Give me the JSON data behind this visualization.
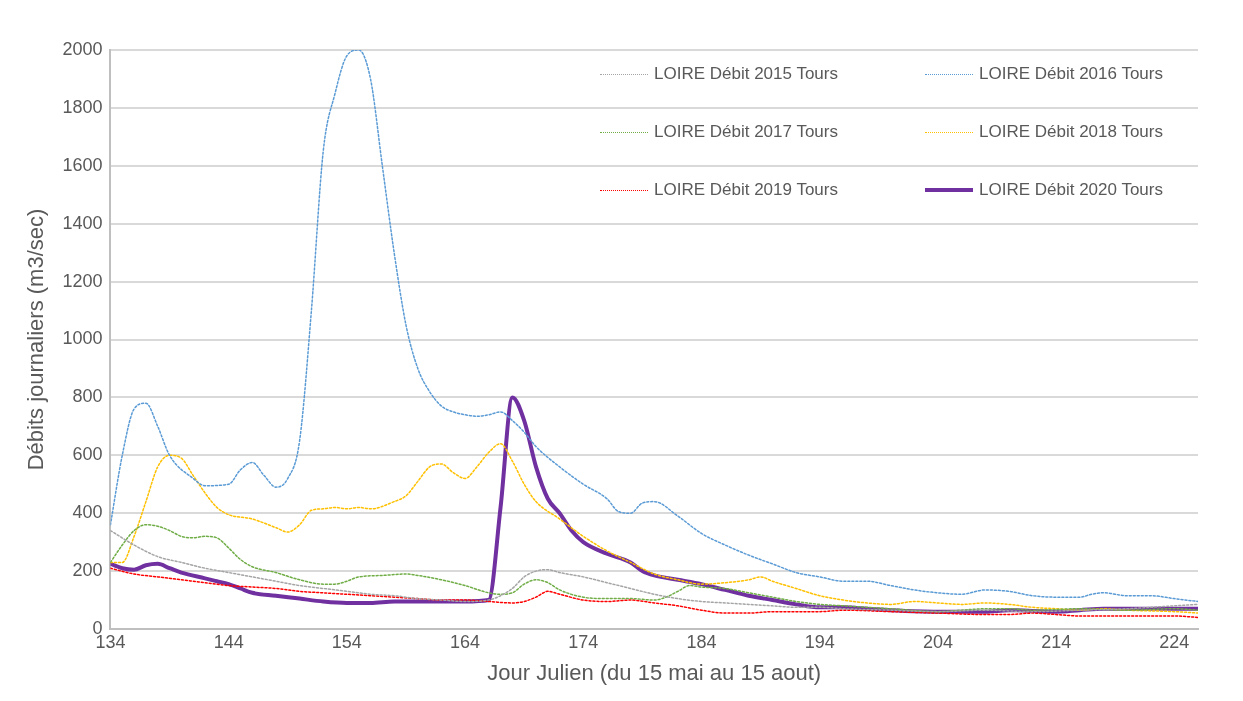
{
  "chart_data": {
    "type": "line",
    "xlabel": "Jour Julien (du 15 mai au 15 aout)",
    "ylabel": "Débits journaliers (m3/sec)",
    "xlim": [
      134,
      226
    ],
    "xticks": [
      134,
      144,
      154,
      164,
      174,
      184,
      194,
      204,
      214,
      224
    ],
    "ylim": [
      0,
      2000
    ],
    "yticks": [
      0,
      200,
      400,
      600,
      800,
      1000,
      1200,
      1400,
      1600,
      1800,
      2000
    ],
    "grid": "y",
    "legend": "top right",
    "marker": "none",
    "series": [
      {
        "name": "LOIRE Débit 2015 Tours",
        "color": "#a5a5a5",
        "line_style": "dotted",
        "x": [
          134,
          136,
          138,
          140,
          142,
          144,
          146,
          148,
          150,
          152,
          154,
          156,
          158,
          160,
          162,
          164,
          166,
          167,
          168,
          169,
          170,
          171,
          172,
          174,
          176,
          178,
          180,
          182,
          184,
          186,
          188,
          190,
          192,
          194,
          196,
          200,
          204,
          208,
          212,
          216,
          220,
          224,
          226
        ],
        "values": [
          340,
          290,
          250,
          230,
          210,
          195,
          180,
          165,
          150,
          140,
          130,
          120,
          115,
          105,
          100,
          95,
          100,
          115,
          140,
          180,
          200,
          205,
          195,
          180,
          160,
          140,
          120,
          105,
          95,
          90,
          85,
          80,
          75,
          75,
          70,
          65,
          60,
          65,
          60,
          65,
          70,
          80,
          85
        ]
      },
      {
        "name": "LOIRE Débit 2016 Tours",
        "color": "#5b9bd5",
        "line_style": "dotted",
        "x": [
          134,
          135,
          136,
          137,
          138,
          139,
          141,
          142,
          144,
          145,
          146,
          147,
          148,
          149,
          150,
          151,
          152,
          153,
          154,
          155,
          156,
          157,
          158,
          159,
          160,
          161,
          162,
          163,
          164,
          165,
          166,
          167,
          168,
          169,
          170,
          172,
          174,
          176,
          177,
          178,
          179,
          180,
          182,
          184,
          186,
          188,
          190,
          192,
          194,
          196,
          198,
          200,
          202,
          204,
          206,
          208,
          210,
          212,
          214,
          216,
          217,
          218,
          220,
          222,
          224,
          226
        ],
        "values": [
          360,
          600,
          760,
          780,
          700,
          600,
          520,
          495,
          500,
          550,
          575,
          530,
          490,
          520,
          650,
          1100,
          1650,
          1850,
          1980,
          2000,
          1900,
          1600,
          1300,
          1050,
          900,
          820,
          770,
          750,
          740,
          735,
          740,
          750,
          720,
          680,
          630,
          560,
          500,
          450,
          405,
          400,
          435,
          440,
          390,
          330,
          290,
          255,
          225,
          195,
          180,
          165,
          165,
          150,
          135,
          125,
          120,
          135,
          130,
          115,
          110,
          110,
          120,
          125,
          115,
          115,
          105,
          95
        ]
      },
      {
        "name": "LOIRE Débit 2017 Tours",
        "color": "#70ad47",
        "line_style": "dotted",
        "x": [
          134,
          135,
          136,
          137,
          138,
          139,
          140,
          141,
          142,
          143,
          144,
          145,
          146,
          148,
          150,
          152,
          153,
          154,
          155,
          157,
          159,
          160,
          162,
          164,
          166,
          167,
          168,
          169,
          170,
          171,
          172,
          174,
          176,
          178,
          180,
          181,
          182,
          183,
          184,
          186,
          188,
          190,
          192,
          194,
          196,
          198,
          200,
          204,
          206,
          208,
          210,
          212,
          216,
          220,
          224,
          226
        ],
        "values": [
          230,
          290,
          340,
          360,
          355,
          340,
          320,
          315,
          320,
          315,
          280,
          240,
          215,
          195,
          170,
          155,
          155,
          165,
          180,
          185,
          190,
          185,
          170,
          150,
          125,
          120,
          125,
          155,
          170,
          160,
          135,
          110,
          105,
          105,
          100,
          110,
          130,
          150,
          145,
          140,
          125,
          110,
          95,
          85,
          80,
          75,
          70,
          60,
          65,
          70,
          70,
          65,
          70,
          65,
          70,
          65
        ]
      },
      {
        "name": "LOIRE Débit 2018 Tours",
        "color": "#ffc000",
        "line_style": "dotted",
        "x": [
          134,
          135,
          136,
          137,
          138,
          139,
          140,
          141,
          142,
          143,
          144,
          146,
          148,
          149,
          150,
          151,
          152,
          153,
          154,
          155,
          156,
          158,
          159,
          160,
          161,
          162,
          163,
          164,
          165,
          166,
          167,
          168,
          169,
          170,
          172,
          174,
          176,
          178,
          180,
          182,
          184,
          186,
          188,
          189,
          190,
          192,
          194,
          196,
          198,
          200,
          202,
          204,
          206,
          208,
          210,
          212,
          214,
          216,
          218,
          220,
          224,
          226
        ],
        "values": [
          230,
          230,
          320,
          440,
          560,
          600,
          590,
          530,
          470,
          420,
          395,
          380,
          350,
          335,
          360,
          410,
          415,
          420,
          415,
          420,
          415,
          440,
          460,
          510,
          560,
          570,
          540,
          520,
          560,
          610,
          640,
          580,
          500,
          440,
          380,
          320,
          270,
          230,
          190,
          170,
          155,
          160,
          170,
          180,
          165,
          140,
          115,
          100,
          90,
          85,
          95,
          90,
          85,
          90,
          85,
          75,
          70,
          65,
          70,
          65,
          60,
          55
        ]
      },
      {
        "name": "LOIRE Débit 2019 Tours",
        "color": "#ff0000",
        "line_style": "dotted",
        "x": [
          134,
          136,
          138,
          140,
          142,
          144,
          146,
          148,
          150,
          152,
          154,
          156,
          158,
          160,
          162,
          164,
          166,
          168,
          169,
          170,
          171,
          172,
          174,
          176,
          178,
          180,
          182,
          184,
          186,
          188,
          190,
          192,
          194,
          196,
          200,
          204,
          208,
          210,
          212,
          214,
          216,
          220,
          224,
          226
        ],
        "values": [
          210,
          190,
          180,
          170,
          160,
          150,
          145,
          140,
          130,
          125,
          120,
          115,
          110,
          105,
          100,
          100,
          95,
          90,
          95,
          110,
          130,
          120,
          100,
          95,
          100,
          90,
          80,
          65,
          55,
          55,
          60,
          60,
          60,
          65,
          60,
          55,
          50,
          50,
          55,
          50,
          45,
          45,
          45,
          40
        ]
      },
      {
        "name": "LOIRE Débit 2020 Tours",
        "color": "#7030a0",
        "line_style": "solid",
        "x": [
          134,
          135,
          136,
          137,
          138,
          139,
          140,
          142,
          143,
          144,
          145,
          146,
          148,
          150,
          152,
          154,
          156,
          158,
          160,
          162,
          164,
          166,
          167,
          168,
          169,
          170,
          171,
          172,
          173,
          174,
          176,
          178,
          179,
          180,
          182,
          184,
          186,
          188,
          190,
          192,
          194,
          196,
          198,
          200,
          204,
          208,
          210,
          214,
          216,
          218,
          222,
          226
        ],
        "values": [
          225,
          210,
          205,
          220,
          225,
          210,
          195,
          175,
          165,
          155,
          140,
          125,
          115,
          105,
          95,
          90,
          90,
          95,
          95,
          95,
          95,
          100,
          420,
          800,
          720,
          560,
          450,
          400,
          340,
          300,
          260,
          230,
          200,
          185,
          170,
          155,
          135,
          115,
          100,
          85,
          75,
          75,
          70,
          65,
          60,
          60,
          65,
          60,
          65,
          70,
          70,
          70
        ]
      }
    ]
  }
}
